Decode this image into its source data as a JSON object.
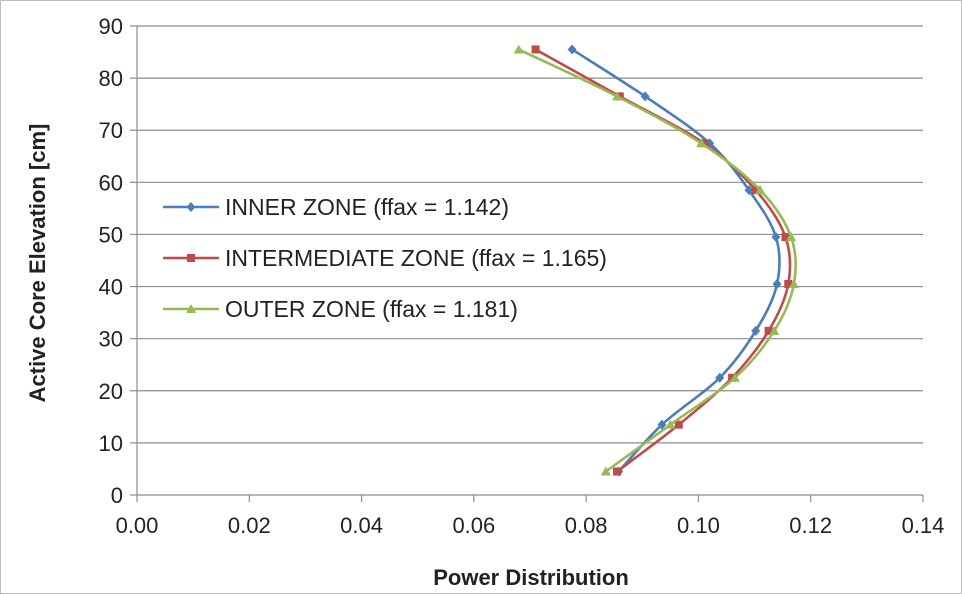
{
  "chart_data": {
    "type": "line",
    "title": "",
    "xlabel": "Power Distribution",
    "ylabel": "Active Core Elevation [cm]",
    "xlim": [
      0.0,
      0.14
    ],
    "ylim": [
      0,
      90
    ],
    "xticks": [
      "0.00",
      "0.02",
      "0.04",
      "0.06",
      "0.08",
      "0.10",
      "0.12",
      "0.14"
    ],
    "yticks": [
      "0",
      "10",
      "20",
      "30",
      "40",
      "50",
      "60",
      "70",
      "80",
      "90"
    ],
    "grid": "horizontal",
    "legend_position": "left",
    "series": [
      {
        "name": "INNER ZONE (ffax = 1.142)",
        "color": "#4a7ebb",
        "marker": "diamond",
        "points": [
          [
            0.0858,
            4.5
          ],
          [
            0.0935,
            13.5
          ],
          [
            0.1038,
            22.5
          ],
          [
            0.1102,
            31.5
          ],
          [
            0.114,
            40.5
          ],
          [
            0.1138,
            49.5
          ],
          [
            0.109,
            58.5
          ],
          [
            0.102,
            67.5
          ],
          [
            0.0905,
            76.5
          ],
          [
            0.0775,
            85.5
          ]
        ]
      },
      {
        "name": "INTERMEDIATE ZONE (ffax = 1.165)",
        "color": "#be4b48",
        "marker": "square",
        "points": [
          [
            0.0855,
            4.5
          ],
          [
            0.0965,
            13.5
          ],
          [
            0.106,
            22.5
          ],
          [
            0.1125,
            31.5
          ],
          [
            0.116,
            40.5
          ],
          [
            0.1155,
            49.5
          ],
          [
            0.1102,
            58.5
          ],
          [
            0.101,
            67.5
          ],
          [
            0.086,
            76.5
          ],
          [
            0.071,
            85.5
          ]
        ]
      },
      {
        "name": "OUTER ZONE (ffax = 1.181)",
        "color": "#98b954",
        "marker": "triangle",
        "points": [
          [
            0.0835,
            4.5
          ],
          [
            0.095,
            13.5
          ],
          [
            0.1065,
            22.5
          ],
          [
            0.1135,
            31.5
          ],
          [
            0.117,
            40.5
          ],
          [
            0.1165,
            49.5
          ],
          [
            0.111,
            58.5
          ],
          [
            0.1005,
            67.5
          ],
          [
            0.0855,
            76.5
          ],
          [
            0.068,
            85.5
          ]
        ]
      }
    ]
  }
}
